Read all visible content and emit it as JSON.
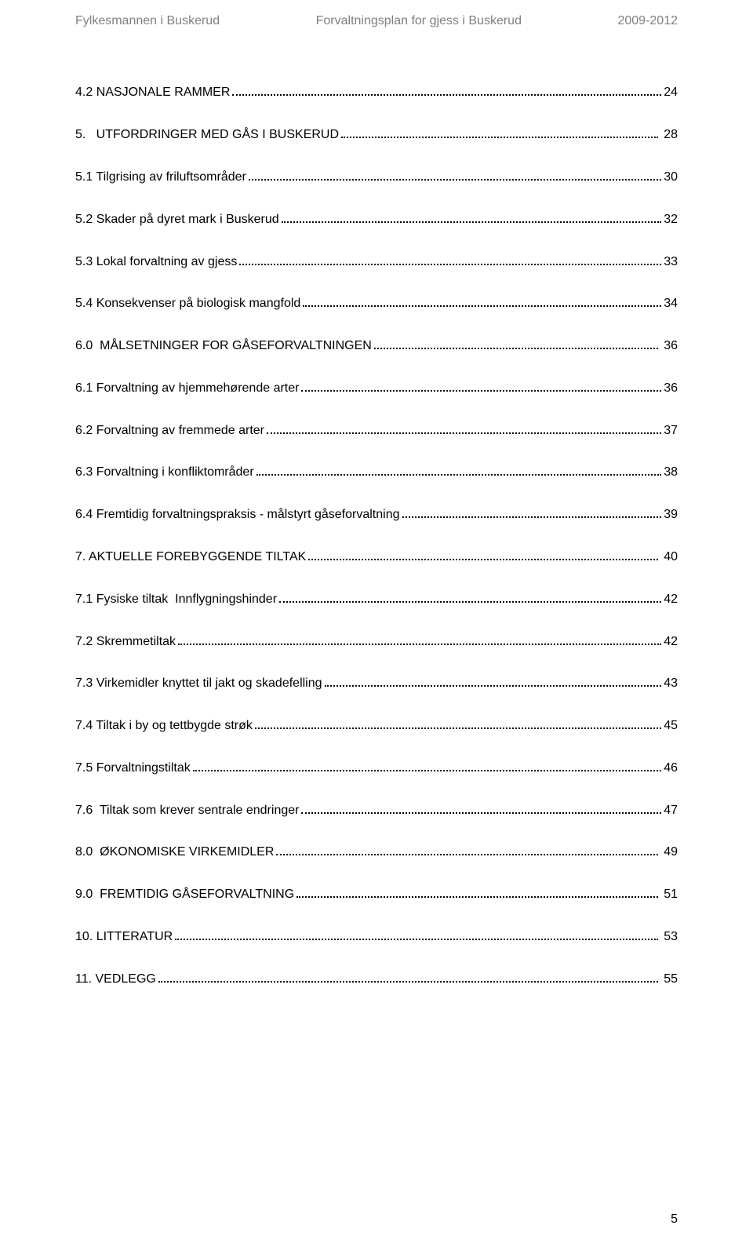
{
  "header": {
    "left": "Fylkesmannen i Buskerud",
    "center": "Forvaltningsplan for gjess i Buskerud",
    "right": "2009-2012"
  },
  "toc": [
    {
      "label": "4.2 NASJONALE RAMMER",
      "page": "24",
      "major": false,
      "page_prefix": ""
    },
    {
      "label": "5.   UTFORDRINGER MED GÅS I BUSKERUD",
      "page": "28",
      "major": true,
      "page_prefix": " "
    },
    {
      "label": "5.1 Tilgrising av friluftsområder",
      "page": "30",
      "major": false,
      "page_prefix": ""
    },
    {
      "label": "5.2 Skader på dyret mark i Buskerud",
      "page": "32",
      "major": false,
      "page_prefix": ""
    },
    {
      "label": "5.3 Lokal forvaltning av gjess",
      "page": "33",
      "major": false,
      "page_prefix": ""
    },
    {
      "label": "5.4 Konsekvenser på biologisk mangfold",
      "page": "34",
      "major": false,
      "page_prefix": ""
    },
    {
      "label": "6.0  MÅLSETNINGER FOR GÅSEFORVALTNINGEN",
      "page": "36",
      "major": true,
      "page_prefix": " "
    },
    {
      "label": "6.1 Forvaltning av hjemmehørende arter",
      "page": "36",
      "major": false,
      "page_prefix": ""
    },
    {
      "label": "6.2 Forvaltning av fremmede arter",
      "page": "37",
      "major": false,
      "page_prefix": ""
    },
    {
      "label": "6.3 Forvaltning i konfliktområder",
      "page": "38",
      "major": false,
      "page_prefix": ""
    },
    {
      "label": "6.4 Fremtidig forvaltningspraksis - målstyrt gåseforvaltning",
      "page": "39",
      "major": false,
      "page_prefix": ""
    },
    {
      "label": "7. AKTUELLE FOREBYGGENDE TILTAK",
      "page": "40",
      "major": true,
      "page_prefix": " "
    },
    {
      "label": "7.1 Fysiske tiltak  Innflygningshinder",
      "page": "42",
      "major": false,
      "page_prefix": ""
    },
    {
      "label": "7.2 Skremmetiltak",
      "page": "42",
      "major": false,
      "page_prefix": ""
    },
    {
      "label": "7.3 Virkemidler knyttet til jakt og skadefelling",
      "page": "43",
      "major": false,
      "page_prefix": ""
    },
    {
      "label": "7.4 Tiltak i by og tettbygde strøk",
      "page": "45",
      "major": false,
      "page_prefix": ""
    },
    {
      "label": "7.5 Forvaltningstiltak",
      "page": "46",
      "major": false,
      "page_prefix": ""
    },
    {
      "label": "7.6  Tiltak som krever sentrale endringer",
      "page": "47",
      "major": false,
      "page_prefix": ""
    },
    {
      "label": "8.0  ØKONOMISKE VIRKEMIDLER",
      "page": "49",
      "major": true,
      "page_prefix": " "
    },
    {
      "label": "9.0  FREMTIDIG GÅSEFORVALTNING",
      "page": "51",
      "major": true,
      "page_prefix": " "
    },
    {
      "label": "10. LITTERATUR",
      "page": "53",
      "major": true,
      "page_prefix": " "
    },
    {
      "label": "11. VEDLEGG",
      "page": "55",
      "major": true,
      "page_prefix": " "
    }
  ],
  "footer": {
    "page_number": "5"
  }
}
